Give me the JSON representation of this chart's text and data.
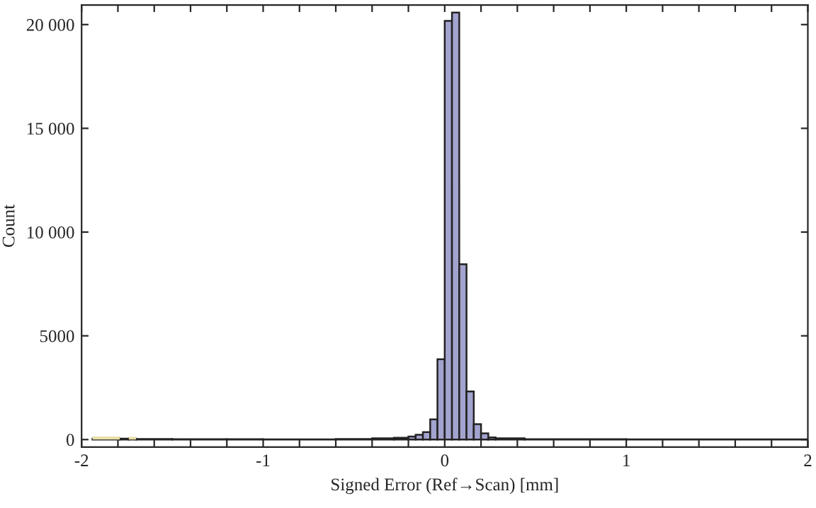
{
  "chart_data": {
    "type": "histogram",
    "xlabel": "Signed Error (Ref→Scan) [mm]",
    "ylabel": "Count",
    "bins": [
      -1.94,
      -1.79,
      -1.74,
      -1.7,
      -1.5,
      -1.2,
      -1.0,
      -0.6,
      -0.4,
      -0.28,
      -0.2,
      -0.16,
      -0.12,
      -0.08,
      -0.04,
      0,
      0.04,
      0.08,
      0.12,
      0.16,
      0.2,
      0.24,
      0.28,
      0.44,
      1.0,
      2
    ],
    "series": [
      {
        "color": "#a3a3cf",
        "values": [
          40,
          40,
          40,
          30,
          20,
          20,
          10,
          30,
          60,
          90,
          150,
          230,
          360,
          970,
          3870,
          20180,
          20580,
          8450,
          2320,
          740,
          300,
          100,
          60,
          20,
          10
        ]
      },
      {
        "color": "#e8dfa8",
        "values": [
          150,
          null,
          130,
          null,
          null,
          null,
          null,
          null,
          null,
          null,
          null,
          null,
          null,
          null,
          null,
          null,
          null,
          null,
          null,
          null,
          null,
          null,
          null,
          null,
          null
        ]
      }
    ],
    "xlim": [
      -2,
      2
    ],
    "ylim": [
      -360,
      20940
    ],
    "xticks": [
      -2,
      {
        "value": -1.8,
        "label": null
      },
      {
        "value": -1.6,
        "label": null
      },
      {
        "value": -1.4,
        "label": null
      },
      {
        "value": -1.2,
        "label": null
      },
      -1,
      {
        "value": -0.8,
        "label": null
      },
      {
        "value": -0.6,
        "label": null
      },
      {
        "value": -0.4,
        "label": null
      },
      {
        "value": -0.2,
        "label": null
      },
      0,
      {
        "value": 0.2,
        "label": null
      },
      {
        "value": 0.4,
        "label": null
      },
      {
        "value": 0.6,
        "label": null
      },
      {
        "value": 0.8,
        "label": null
      },
      1,
      {
        "value": 1.2,
        "label": null
      },
      {
        "value": 1.4,
        "label": null
      },
      {
        "value": 1.6,
        "label": null
      },
      {
        "value": 1.8,
        "label": null
      },
      2
    ],
    "yticks": [
      0,
      5000,
      {
        "value": 10000,
        "label": "10 000"
      },
      {
        "value": 15000,
        "label": "15 000"
      },
      {
        "value": 20000,
        "label": "20 000"
      }
    ]
  }
}
